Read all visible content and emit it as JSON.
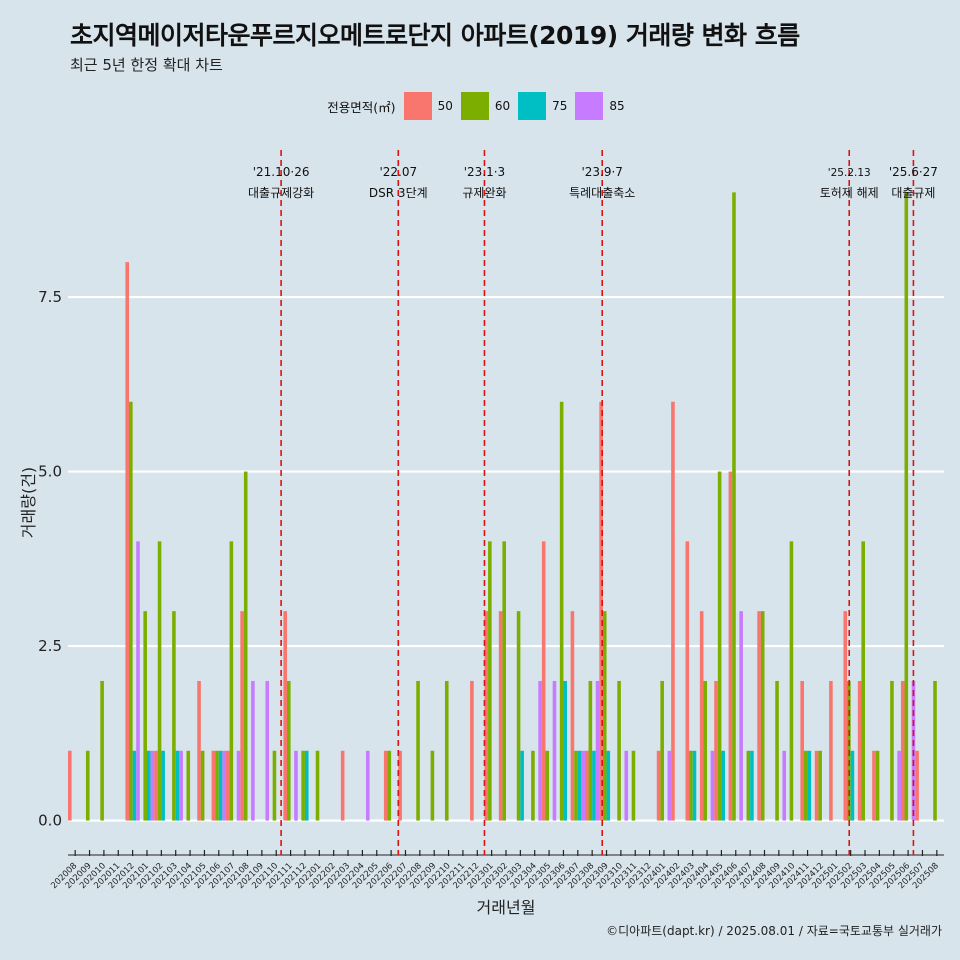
{
  "title": "초지역메이저타운푸르지오메트로단지 아파트(2019) 거래량 변화 흐름",
  "subtitle": "최근 5년 한정 확대 차트",
  "caption": "©디아파트(dapt.kr) / 2025.08.01 / 자료=국토교통부 실거래가",
  "legend": {
    "title": "전용면적(㎡)",
    "items": [
      {
        "label": "50",
        "color": "#F8766D"
      },
      {
        "label": "60",
        "color": "#7CAE00"
      },
      {
        "label": "75",
        "color": "#00BFC4"
      },
      {
        "label": "85",
        "color": "#C77CFF"
      }
    ]
  },
  "chart_data": {
    "type": "bar",
    "xlabel": "거래년월",
    "ylabel": "거래량(건)",
    "ylim": [
      -0.35,
      9.75
    ],
    "yticks": [
      "0.0",
      "2.5",
      "5.0",
      "7.5"
    ],
    "grid": true,
    "legend_position": "top",
    "categories": [
      "202008",
      "202009",
      "202010",
      "202011",
      "202012",
      "202101",
      "202102",
      "202103",
      "202104",
      "202105",
      "202106",
      "202107",
      "202108",
      "202109",
      "202110",
      "202111",
      "202112",
      "202201",
      "202202",
      "202203",
      "202204",
      "202205",
      "202206",
      "202207",
      "202208",
      "202209",
      "202210",
      "202211",
      "202212",
      "202301",
      "202302",
      "202303",
      "202304",
      "202305",
      "202306",
      "202307",
      "202308",
      "202309",
      "202310",
      "202311",
      "202312",
      "202401",
      "202402",
      "202403",
      "202404",
      "202405",
      "202406",
      "202407",
      "202408",
      "202409",
      "202410",
      "202411",
      "202412",
      "202501",
      "202502",
      "202503",
      "202504",
      "202505",
      "202506",
      "202507",
      "202508"
    ],
    "series": [
      {
        "name": "50",
        "values": [
          1,
          0,
          0,
          0,
          8,
          0,
          1,
          0,
          0,
          2,
          1,
          1,
          3,
          0,
          0,
          3,
          0,
          0,
          0,
          1,
          0,
          0,
          1,
          1,
          0,
          0,
          0,
          0,
          2,
          3,
          3,
          0,
          0,
          4,
          0,
          3,
          1,
          6,
          0,
          0,
          0,
          1,
          6,
          4,
          3,
          2,
          5,
          0,
          3,
          0,
          0,
          2,
          1,
          2,
          3,
          2,
          1,
          0,
          2,
          1,
          0
        ]
      },
      {
        "name": "60",
        "values": [
          0,
          1,
          2,
          0,
          6,
          3,
          4,
          3,
          1,
          1,
          1,
          4,
          5,
          0,
          1,
          2,
          1,
          1,
          0,
          0,
          0,
          0,
          1,
          0,
          2,
          1,
          2,
          0,
          0,
          4,
          4,
          3,
          1,
          1,
          6,
          1,
          2,
          3,
          2,
          1,
          0,
          2,
          0,
          1,
          2,
          5,
          9,
          1,
          3,
          2,
          4,
          1,
          1,
          0,
          2,
          4,
          1,
          2,
          9,
          0,
          2
        ]
      },
      {
        "name": "75",
        "values": [
          0,
          0,
          0,
          0,
          1,
          1,
          1,
          1,
          0,
          0,
          1,
          0,
          0,
          0,
          0,
          0,
          1,
          0,
          0,
          0,
          0,
          0,
          0,
          0,
          0,
          0,
          0,
          0,
          0,
          0,
          0,
          1,
          0,
          0,
          2,
          1,
          1,
          1,
          0,
          0,
          0,
          0,
          0,
          1,
          0,
          1,
          0,
          1,
          0,
          0,
          0,
          1,
          0,
          0,
          1,
          0,
          0,
          0,
          0,
          0,
          0
        ]
      },
      {
        "name": "85",
        "values": [
          0,
          0,
          0,
          0,
          4,
          1,
          0,
          1,
          0,
          0,
          1,
          1,
          2,
          2,
          0,
          1,
          0,
          0,
          0,
          0,
          1,
          0,
          0,
          0,
          0,
          0,
          0,
          0,
          0,
          0,
          0,
          0,
          2,
          2,
          0,
          1,
          2,
          0,
          1,
          0,
          0,
          1,
          0,
          0,
          1,
          0,
          3,
          0,
          0,
          1,
          0,
          0,
          0,
          0,
          0,
          0,
          0,
          1,
          2,
          0,
          0
        ]
      }
    ],
    "events": [
      {
        "date": "'21.10·26",
        "label": "대출규제강화",
        "at": "202110",
        "frac": 0.84
      },
      {
        "date": "'22.07",
        "label": "DSR 3단계",
        "at": "202207",
        "frac": 0.0
      },
      {
        "date": "'23.1·3",
        "label": "규제완화",
        "at": "202301",
        "frac": 0.0
      },
      {
        "date": "'23.9·7",
        "label": "특례대출축소",
        "at": "202309",
        "frac": 0.2
      },
      {
        "date": "'25.2.13",
        "label": "토허제 해제",
        "at": "202502",
        "frac": 0.4
      },
      {
        "date": "'25.6·27",
        "label": "대출규제",
        "at": "202506",
        "frac": 0.87
      }
    ]
  }
}
